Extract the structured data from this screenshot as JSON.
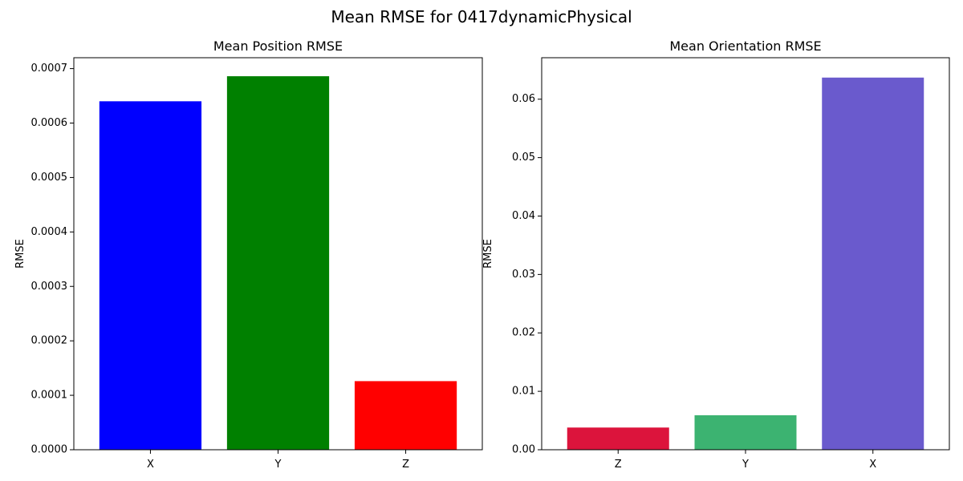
{
  "figure": {
    "suptitle": "Mean RMSE for 0417dynamicPhysical"
  },
  "chart_data": [
    {
      "type": "bar",
      "title": "Mean Position RMSE",
      "xlabel": "",
      "ylabel": "RMSE",
      "categories": [
        "X",
        "Y",
        "Z"
      ],
      "values": [
        0.00064,
        0.000686,
        0.000126
      ],
      "colors": [
        "#0000ff",
        "#008000",
        "#ff0000"
      ],
      "ylim": [
        0,
        0.00072
      ],
      "yticks": [
        0,
        0.0001,
        0.0002,
        0.0003,
        0.0004,
        0.0005,
        0.0006,
        0.0007
      ],
      "ytick_labels": [
        "0.0000",
        "0.0001",
        "0.0002",
        "0.0003",
        "0.0004",
        "0.0005",
        "0.0006",
        "0.0007"
      ],
      "grid": false
    },
    {
      "type": "bar",
      "title": "Mean Orientation RMSE",
      "xlabel": "",
      "ylabel": "RMSE",
      "categories": [
        "Z",
        "Y",
        "X"
      ],
      "values": [
        0.0038,
        0.0059,
        0.0637
      ],
      "colors": [
        "#dc143c",
        "#3cb371",
        "#6a5acd"
      ],
      "ylim": [
        0,
        0.0671
      ],
      "yticks": [
        0,
        0.01,
        0.02,
        0.03,
        0.04,
        0.05,
        0.06
      ],
      "ytick_labels": [
        "0.00",
        "0.01",
        "0.02",
        "0.03",
        "0.04",
        "0.05",
        "0.06"
      ],
      "grid": false
    }
  ]
}
